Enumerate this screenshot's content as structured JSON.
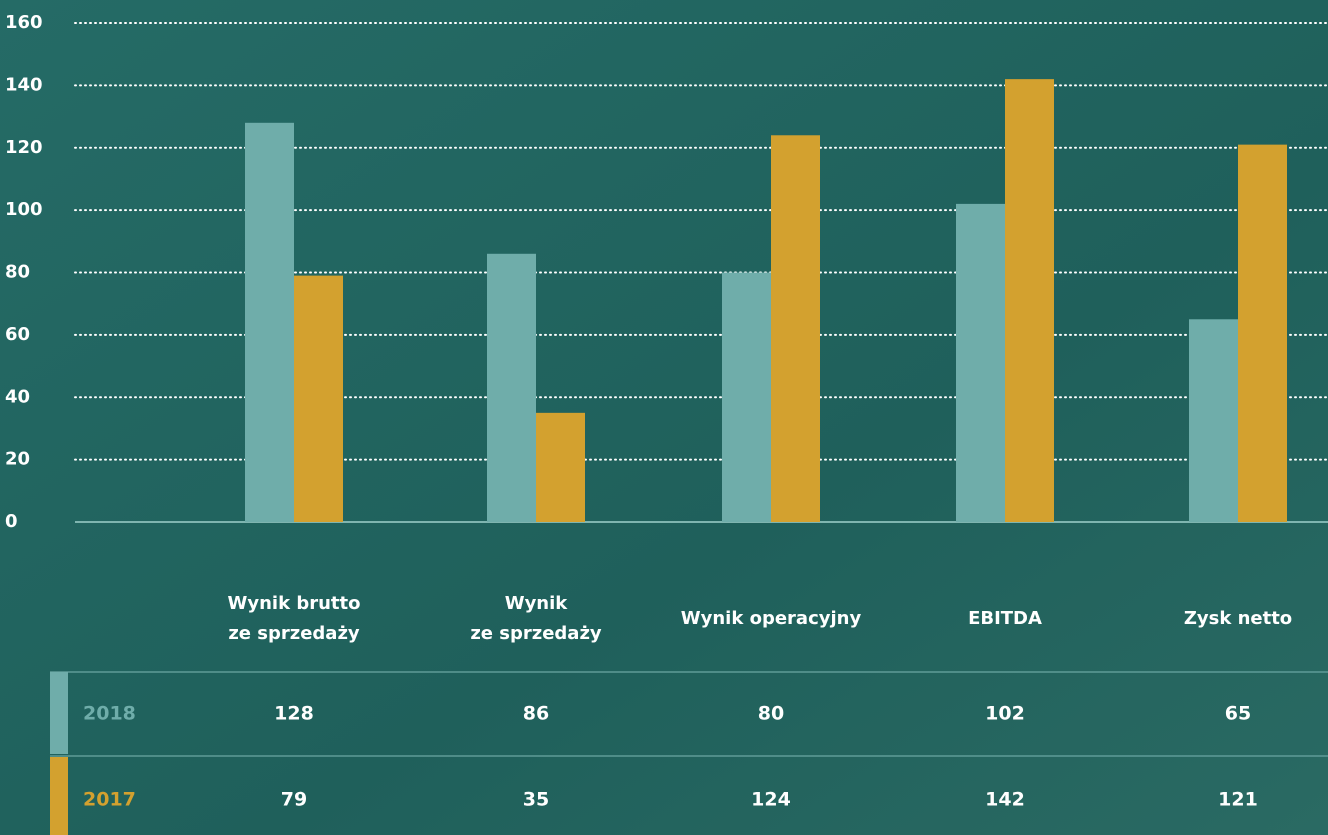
{
  "chart_data": {
    "type": "bar",
    "categories": [
      [
        "Wynik brutto",
        "ze sprzedaży"
      ],
      [
        "Wynik",
        "ze sprzedaży"
      ],
      [
        "Wynik operacyjny"
      ],
      [
        "EBITDA"
      ],
      [
        "Zysk netto"
      ]
    ],
    "series": [
      {
        "name": "2018",
        "color": "#6fadaa",
        "values": [
          128,
          86,
          80,
          102,
          65
        ]
      },
      {
        "name": "2017",
        "color": "#d3a12f",
        "values": [
          79,
          35,
          124,
          142,
          121
        ]
      }
    ],
    "ylim": [
      0,
      160
    ],
    "yticks": [
      0,
      20,
      40,
      60,
      80,
      100,
      120,
      140,
      160
    ],
    "grid": true
  }
}
